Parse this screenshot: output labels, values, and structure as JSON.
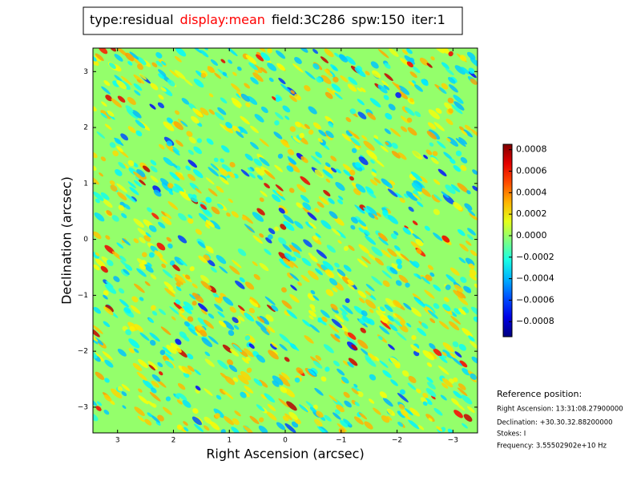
{
  "chart_data": {
    "type": "image",
    "title_items": [
      {
        "text": "type:residual",
        "color": "#000000"
      },
      {
        "text": "display:mean",
        "color": "#ff0000"
      },
      {
        "text": "field:3C286",
        "color": "#000000"
      },
      {
        "text": "spw:150",
        "color": "#000000"
      },
      {
        "text": "iter:1",
        "color": "#000000"
      }
    ],
    "xlabel": "Right Ascension (arcsec)",
    "ylabel": "Declination (arcsec)",
    "xlim": [
      3.44,
      -3.44
    ],
    "ylim": [
      -3.46,
      3.42
    ],
    "xticks": [
      3,
      2,
      1,
      0,
      {
        "value": -1,
        "label": "−1"
      },
      {
        "value": -2,
        "label": "−2"
      },
      {
        "value": -3,
        "label": "−3"
      }
    ],
    "yticks": [
      {
        "value": -3,
        "label": "−3"
      },
      {
        "value": -2,
        "label": "−2"
      },
      {
        "value": -1,
        "label": "−1"
      },
      0,
      1,
      2,
      3
    ],
    "colormap": "jet",
    "clim": [
      -0.00094,
      0.00085
    ],
    "cticks": [
      {
        "value": -0.0008,
        "label": "−0.0008"
      },
      {
        "value": -0.0006,
        "label": "−0.0006"
      },
      {
        "value": -0.0004,
        "label": "−0.0004"
      },
      {
        "value": -0.0002,
        "label": "−0.0002"
      },
      {
        "value": 0,
        "label": "0.0000"
      },
      0.0002,
      0.0004,
      0.0006,
      0.0008
    ],
    "reference": {
      "heading": "Reference position:",
      "lines": [
        "Right Ascension: 13:31:08.27900000",
        "Declination: +30.30.32.88200000",
        "Stokes: I",
        "Frequency: 3.55502902e+10 Hz"
      ]
    }
  }
}
